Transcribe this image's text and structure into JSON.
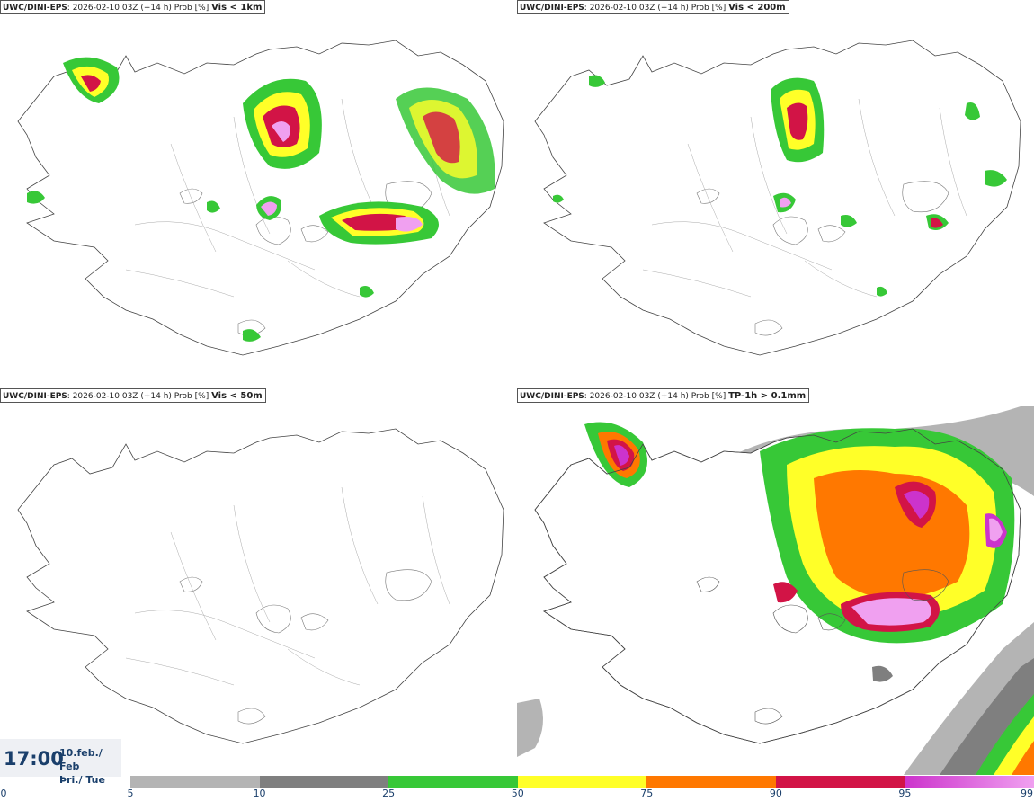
{
  "panels": [
    {
      "model": "UWC/DINI-EPS",
      "run": ": 2026-02-10 03Z (+14 h) Prob [%]",
      "variable": "Vis < 1km"
    },
    {
      "model": "UWC/DINI-EPS",
      "run": ": 2026-02-10 03Z (+14 h) Prob [%]",
      "variable": "Vis < 200m"
    },
    {
      "model": "UWC/DINI-EPS",
      "run": ": 2026-02-10 03Z (+14 h) Prob [%]",
      "variable": "Vis < 50m"
    },
    {
      "model": "UWC/DINI-EPS",
      "run": ": 2026-02-10 03Z (+14 h) Prob [%]",
      "variable": "TP-1h > 0.1mm"
    }
  ],
  "valid_time": {
    "time": "17:00",
    "date_line1": "10.feb./ Feb",
    "date_line2": "Þri./ Tue"
  },
  "colorbar": {
    "ticks": [
      "0",
      "5",
      "10",
      "25",
      "50",
      "75",
      "90",
      "95",
      "99"
    ],
    "colors": [
      "#ffffff",
      "#b4b4b4",
      "#7f7f7f",
      "#37c837",
      "#ffff28",
      "#ff7800",
      "#d21446",
      "#cc33cc",
      "#f0a0f0"
    ]
  }
}
